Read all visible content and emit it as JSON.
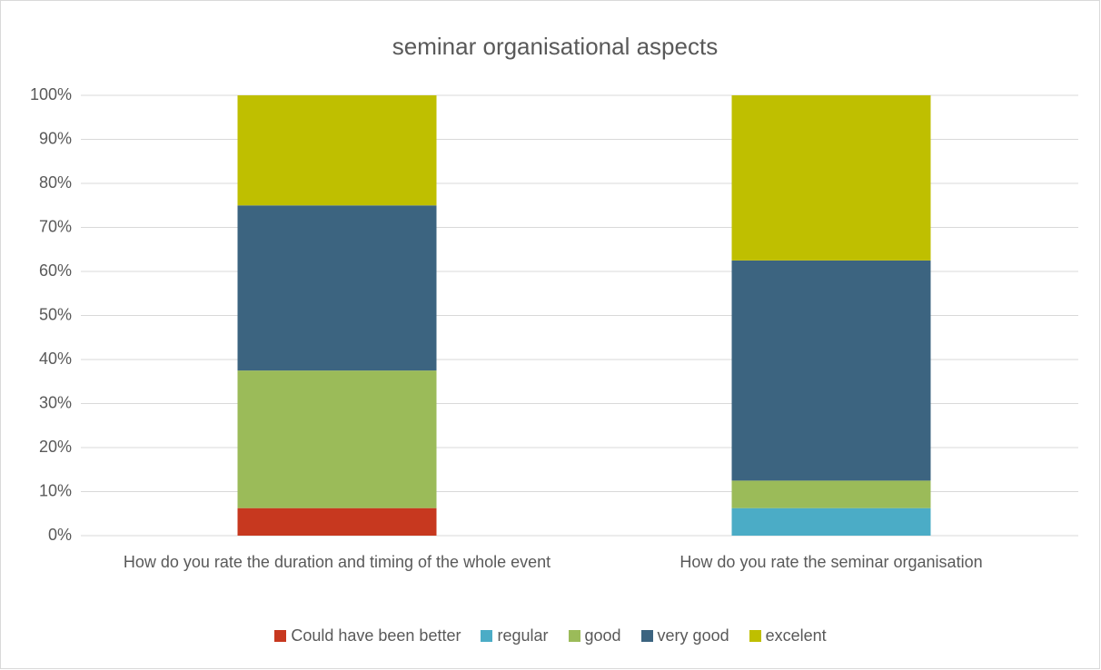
{
  "chart_data": {
    "type": "stacked_bar",
    "title": "seminar organisational aspects",
    "categories": [
      "How do you rate the duration and timing of the whole event",
      "How do you rate the seminar organisation"
    ],
    "series": [
      {
        "name": "Could have been better",
        "color": "#c7381f",
        "values": [
          6.25,
          0
        ]
      },
      {
        "name": "regular",
        "color": "#4bacc6",
        "values": [
          0,
          6.25
        ]
      },
      {
        "name": "good",
        "color": "#9bbb59",
        "values": [
          31.25,
          6.25
        ]
      },
      {
        "name": "very good",
        "color": "#3c6480",
        "values": [
          37.5,
          50
        ]
      },
      {
        "name": "excelent",
        "color": "#bfbf00",
        "values": [
          25,
          37.5
        ]
      }
    ],
    "ylim": [
      0,
      100
    ],
    "yticks": [
      {
        "value": 0,
        "label": "0%"
      },
      {
        "value": 10,
        "label": "10%"
      },
      {
        "value": 20,
        "label": "20%"
      },
      {
        "value": 30,
        "label": "30%"
      },
      {
        "value": 40,
        "label": "40%"
      },
      {
        "value": 50,
        "label": "50%"
      },
      {
        "value": 60,
        "label": "60%"
      },
      {
        "value": 70,
        "label": "70%"
      },
      {
        "value": 80,
        "label": "80%"
      },
      {
        "value": 90,
        "label": "90%"
      },
      {
        "value": 100,
        "label": "100%"
      }
    ],
    "grid": true,
    "legend": "bottom"
  }
}
